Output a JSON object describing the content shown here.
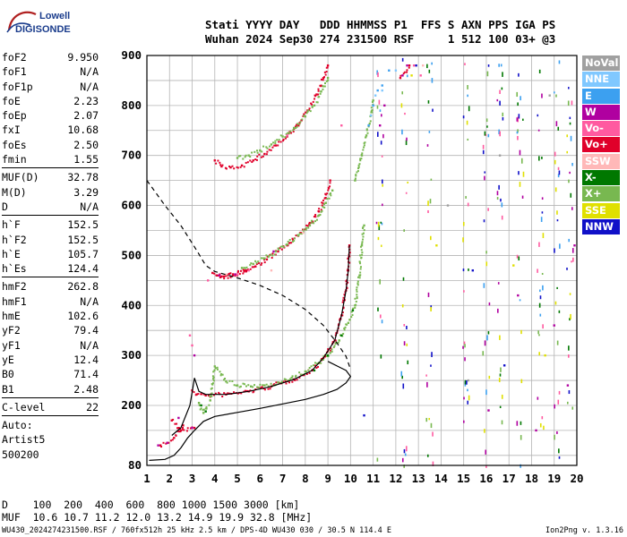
{
  "logo": {
    "line1": "Lowell",
    "line2": "DIGISONDE"
  },
  "header": {
    "labels": "Stati YYYY DAY   DDD HHMMSS P1  FFS S AXN PPS IGA PS",
    "values": "Wuhan 2024 Sep30 274 231500 RSF     1 512 100 03+ @3"
  },
  "params": {
    "group1": [
      {
        "k": "foF2",
        "v": "9.950"
      },
      {
        "k": "foF1",
        "v": "N/A"
      },
      {
        "k": "foF1p",
        "v": "N/A"
      },
      {
        "k": "foE",
        "v": "2.23"
      },
      {
        "k": "foEp",
        "v": "2.07"
      },
      {
        "k": "fxI",
        "v": "10.68"
      },
      {
        "k": "foEs",
        "v": "2.50"
      },
      {
        "k": "fmin",
        "v": "1.55"
      }
    ],
    "group2": [
      {
        "k": "MUF(D)",
        "v": "32.78"
      },
      {
        "k": "M(D)",
        "v": "3.29"
      },
      {
        "k": "D",
        "v": "N/A"
      }
    ],
    "group3": [
      {
        "k": "h`F",
        "v": "152.5"
      },
      {
        "k": "h`F2",
        "v": "152.5"
      },
      {
        "k": "h`E",
        "v": "105.7"
      },
      {
        "k": "h`Es",
        "v": "124.4"
      }
    ],
    "group4": [
      {
        "k": "hmF2",
        "v": "262.8"
      },
      {
        "k": "hmF1",
        "v": "N/A"
      },
      {
        "k": "hmE",
        "v": "102.6"
      },
      {
        "k": "yF2",
        "v": "79.4"
      },
      {
        "k": "yF1",
        "v": "N/A"
      },
      {
        "k": "yE",
        "v": "12.4"
      },
      {
        "k": "B0",
        "v": "71.4"
      },
      {
        "k": "B1",
        "v": "2.48"
      }
    ],
    "group5": [
      {
        "k": "C-level",
        "v": "22"
      }
    ],
    "auto": [
      "Auto:",
      "Artist5",
      "500200"
    ]
  },
  "legend": [
    {
      "label": "NoVal",
      "color": "#a0a0a0"
    },
    {
      "label": "NNE",
      "color": "#80c8ff"
    },
    {
      "label": "E",
      "color": "#3ca0f0"
    },
    {
      "label": "W",
      "color": "#b000a0"
    },
    {
      "label": "Vo-",
      "color": "#ff5aa0"
    },
    {
      "label": "Vo+",
      "color": "#e0002a"
    },
    {
      "label": "SSW",
      "color": "#ffb8b8"
    },
    {
      "label": "X-",
      "color": "#007800"
    },
    {
      "label": "X+",
      "color": "#78b850"
    },
    {
      "label": "SSE",
      "color": "#e0e000"
    },
    {
      "label": "NNW",
      "color": "#1010c8"
    }
  ],
  "footer": {
    "line1": "D    100  200  400  600  800 1000 1500 3000 [km]",
    "line2": "MUF  10.6 10.7 11.2 12.0 13.2 14.9 19.9 32.8 [MHz]",
    "left": "WU430_2024274231500.RSF / 760fx512h 25 kHz 2.5 km / DPS-4D WU430 030 / 30.5 N 114.4 E",
    "right": "Ion2Png v. 1.3.16"
  },
  "chart_data": {
    "type": "scatter",
    "xlim": [
      1,
      20
    ],
    "ylim": [
      80,
      900
    ],
    "xticks": [
      1,
      2,
      3,
      4,
      5,
      6,
      7,
      8,
      9,
      10,
      11,
      12,
      13,
      14,
      15,
      16,
      17,
      18,
      19,
      20
    ],
    "yticks": [
      80,
      200,
      300,
      400,
      500,
      600,
      700,
      800,
      900
    ],
    "grid": true,
    "legend_position": "right",
    "series": [
      {
        "name": "Vo+",
        "values": [
          [
            1.6,
            120
          ],
          [
            1.9,
            125
          ],
          [
            2.2,
            135
          ],
          [
            2.6,
            160
          ],
          [
            3.0,
            230
          ],
          [
            3.2,
            222
          ],
          [
            3.6,
            220
          ],
          [
            4.5,
            222
          ],
          [
            5.5,
            228
          ],
          [
            6.5,
            238
          ],
          [
            7.5,
            252
          ],
          [
            8.3,
            270
          ],
          [
            8.8,
            295
          ],
          [
            9.3,
            330
          ],
          [
            9.6,
            380
          ],
          [
            9.8,
            430
          ],
          [
            9.9,
            470
          ],
          [
            9.95,
            520
          ],
          [
            3.9,
            465
          ],
          [
            4.3,
            458
          ],
          [
            4.8,
            460
          ],
          [
            5.3,
            468
          ],
          [
            5.8,
            478
          ],
          [
            6.3,
            492
          ],
          [
            6.8,
            508
          ],
          [
            7.3,
            525
          ],
          [
            7.8,
            545
          ],
          [
            8.2,
            565
          ],
          [
            8.6,
            588
          ],
          [
            8.9,
            615
          ],
          [
            9.1,
            650
          ],
          [
            4.1,
            460
          ],
          [
            4.4,
            458
          ],
          [
            4.9,
            462
          ],
          [
            5.4,
            470
          ],
          [
            4.0,
            690
          ],
          [
            4.3,
            678
          ],
          [
            4.7,
            676
          ],
          [
            5.2,
            680
          ],
          [
            5.7,
            690
          ],
          [
            6.2,
            703
          ],
          [
            6.7,
            720
          ],
          [
            7.2,
            738
          ],
          [
            7.7,
            760
          ],
          [
            8.1,
            790
          ],
          [
            8.5,
            822
          ],
          [
            8.8,
            855
          ],
          [
            9.0,
            880
          ],
          [
            2.1,
            170
          ],
          [
            2.5,
            150
          ],
          [
            3.1,
            155
          ],
          [
            12.2,
            855
          ],
          [
            12.6,
            880
          ]
        ]
      },
      {
        "name": "X+",
        "values": [
          [
            3.3,
            205
          ],
          [
            3.5,
            185
          ],
          [
            3.8,
            210
          ],
          [
            4.0,
            278
          ],
          [
            4.5,
            248
          ],
          [
            5.0,
            240
          ],
          [
            5.6,
            238
          ],
          [
            6.2,
            240
          ],
          [
            6.8,
            246
          ],
          [
            7.4,
            255
          ],
          [
            8.0,
            268
          ],
          [
            8.6,
            285
          ],
          [
            9.1,
            305
          ],
          [
            9.5,
            330
          ],
          [
            9.9,
            365
          ],
          [
            10.2,
            400
          ],
          [
            10.4,
            460
          ],
          [
            10.5,
            520
          ],
          [
            10.6,
            560
          ],
          [
            5.2,
            475
          ],
          [
            5.7,
            483
          ],
          [
            6.2,
            494
          ],
          [
            6.7,
            508
          ],
          [
            7.2,
            522
          ],
          [
            7.7,
            540
          ],
          [
            8.2,
            560
          ],
          [
            8.6,
            580
          ],
          [
            8.9,
            605
          ],
          [
            9.2,
            630
          ],
          [
            5.0,
            695
          ],
          [
            5.5,
            700
          ],
          [
            6.0,
            710
          ],
          [
            6.5,
            722
          ],
          [
            7.0,
            738
          ],
          [
            7.5,
            755
          ],
          [
            8.0,
            778
          ],
          [
            8.4,
            800
          ],
          [
            8.7,
            828
          ],
          [
            9.0,
            855
          ],
          [
            10.2,
            650
          ],
          [
            10.5,
            700
          ],
          [
            10.7,
            740
          ],
          [
            10.9,
            780
          ],
          [
            11.0,
            810
          ]
        ]
      },
      {
        "name": "W",
        "values": [
          [
            1.5,
            120
          ],
          [
            1.9,
            125
          ],
          [
            2.4,
            175
          ],
          [
            3.0,
            155
          ],
          [
            3.1,
            300
          ],
          [
            4.2,
            460
          ],
          [
            4.9,
            462
          ],
          [
            6.6,
            508
          ],
          [
            11.3,
            760
          ],
          [
            11.5,
            800
          ],
          [
            12.3,
            860
          ],
          [
            12.5,
            880
          ],
          [
            16.1,
            190
          ],
          [
            17.4,
            420
          ],
          [
            18.2,
            150
          ],
          [
            19.0,
            360
          ],
          [
            19.6,
            240
          ],
          [
            19.9,
            520
          ]
        ]
      },
      {
        "name": "E",
        "values": [
          [
            10.8,
            760
          ],
          [
            11.0,
            800
          ],
          [
            11.2,
            830
          ],
          [
            11.4,
            840
          ],
          [
            11.7,
            870
          ]
        ]
      },
      {
        "name": "NNE",
        "values": [
          [
            10.9,
            780
          ],
          [
            11.1,
            820
          ],
          [
            11.4,
            830
          ],
          [
            12.0,
            870
          ]
        ]
      },
      {
        "name": "Vo-",
        "values": [
          [
            2.9,
            340
          ],
          [
            3.0,
            320
          ],
          [
            3.7,
            450
          ],
          [
            5.0,
            462
          ],
          [
            5.5,
            470
          ],
          [
            7.2,
            740
          ],
          [
            9.6,
            760
          ],
          [
            12.8,
            880
          ],
          [
            13.1,
            860
          ]
        ]
      },
      {
        "name": "X-",
        "values": [
          [
            3.4,
            200
          ],
          [
            3.6,
            188
          ],
          [
            8.4,
            270
          ],
          [
            9.0,
            300
          ],
          [
            9.6,
            340
          ],
          [
            10.1,
            390
          ]
        ]
      },
      {
        "name": "SSW",
        "values": [
          [
            4.5,
            462
          ],
          [
            6.5,
            470
          ],
          [
            7.9,
            545
          ],
          [
            13.2,
            880
          ]
        ]
      },
      {
        "name": "SSE",
        "values": [
          [
            12.7,
            860
          ],
          [
            13.8,
            520
          ],
          [
            17.2,
            480
          ],
          [
            18.6,
            300
          ]
        ]
      },
      {
        "name": "NNW",
        "values": [
          [
            10.6,
            180
          ],
          [
            12.9,
            880
          ],
          [
            15.4,
            470
          ],
          [
            16.8,
            280
          ]
        ]
      },
      {
        "name": "NoVal",
        "values": [
          [
            14.3,
            600
          ],
          [
            15.2,
            250
          ],
          [
            16.6,
            700
          ],
          [
            18.8,
            820
          ]
        ]
      }
    ],
    "curves": [
      {
        "kind": "profile",
        "style": "solid",
        "points": [
          [
            1.1,
            90
          ],
          [
            1.8,
            92
          ],
          [
            2.2,
            100
          ],
          [
            2.5,
            115
          ],
          [
            2.8,
            135
          ],
          [
            3.1,
            150
          ],
          [
            3.5,
            168
          ],
          [
            4.0,
            178
          ],
          [
            5.0,
            186
          ],
          [
            6.0,
            194
          ],
          [
            7.0,
            203
          ],
          [
            8.0,
            212
          ],
          [
            8.8,
            222
          ],
          [
            9.4,
            232
          ],
          [
            9.8,
            245
          ],
          [
            10.0,
            258
          ],
          [
            9.8,
            270
          ],
          [
            9.0,
            288
          ]
        ]
      },
      {
        "kind": "muf",
        "style": "dashed",
        "points": [
          [
            1.0,
            650
          ],
          [
            1.8,
            600
          ],
          [
            2.5,
            560
          ],
          [
            3.2,
            510
          ],
          [
            3.6,
            480
          ],
          [
            4.0,
            468
          ],
          [
            5.0,
            455
          ],
          [
            6.0,
            440
          ],
          [
            7.0,
            420
          ],
          [
            8.0,
            392
          ],
          [
            8.8,
            360
          ],
          [
            9.4,
            325
          ],
          [
            9.8,
            298
          ],
          [
            10.0,
            272
          ]
        ]
      },
      {
        "kind": "trace",
        "style": "solid",
        "points": [
          [
            2.1,
            140
          ],
          [
            2.5,
            155
          ],
          [
            2.9,
            200
          ],
          [
            3.05,
            240
          ],
          [
            3.1,
            255
          ],
          [
            3.3,
            228
          ],
          [
            3.6,
            222
          ],
          [
            4.5,
            222
          ],
          [
            5.5,
            228
          ],
          [
            6.5,
            238
          ],
          [
            7.5,
            252
          ],
          [
            8.3,
            270
          ],
          [
            8.8,
            295
          ],
          [
            9.3,
            330
          ],
          [
            9.6,
            380
          ],
          [
            9.8,
            430
          ],
          [
            9.9,
            470
          ],
          [
            9.95,
            520
          ]
        ]
      }
    ]
  }
}
